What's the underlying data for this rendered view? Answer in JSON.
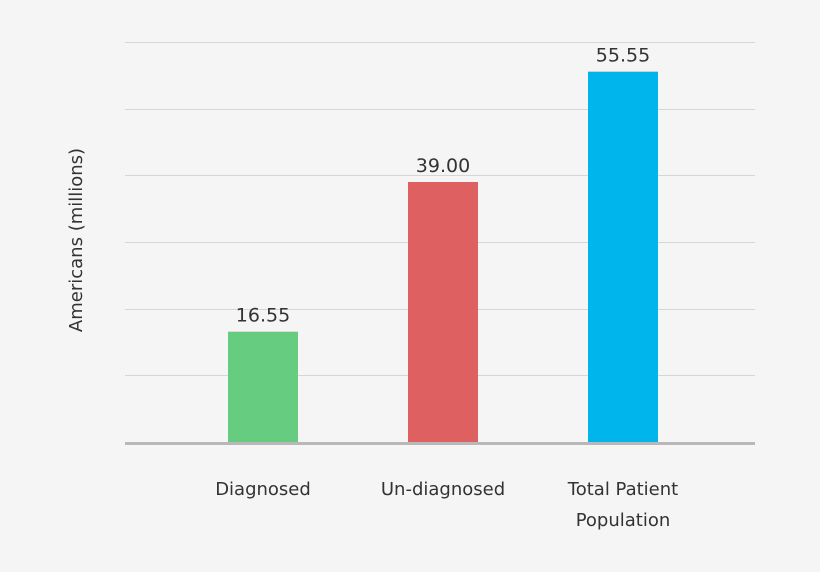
{
  "chart_data": {
    "type": "bar",
    "title": "",
    "xlabel": "",
    "ylabel": "Americans (millions)",
    "categories": [
      [
        "Diagnosed"
      ],
      [
        "Un-diagnosed"
      ],
      [
        "Total Patient",
        "Population"
      ]
    ],
    "values": [
      16.55,
      39.0,
      55.55
    ],
    "value_labels": [
      "16.55",
      "39.00",
      "55.55"
    ],
    "colors": [
      "#66cc7f",
      "#de6060",
      "#00b4ec"
    ],
    "ylim": [
      0,
      60
    ],
    "y_gridline_step": 10,
    "grid": true,
    "ytick_labels_shown": false
  }
}
